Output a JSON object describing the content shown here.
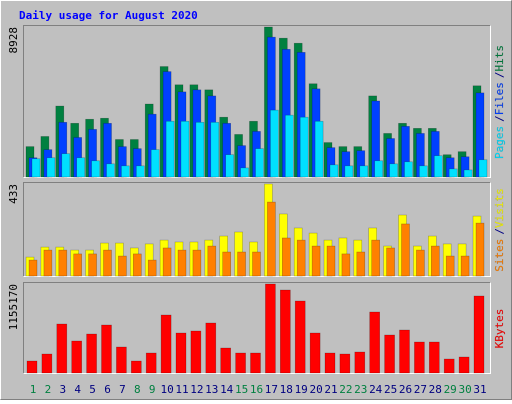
{
  "chart_data": [
    {
      "type": "bar",
      "title": "Daily usage for August 2020",
      "ylim": [
        0,
        8928
      ],
      "yticks": [
        8928
      ],
      "legend_separator": "/",
      "series": [
        {
          "name": "Hits",
          "color": "#008040",
          "values": [
            1810,
            2413,
            4223,
            3197,
            3438,
            3498,
            2232,
            2232,
            4343,
            6575,
            5489,
            5489,
            5188,
            3559,
            2534,
            3318,
            8928,
            8264,
            7963,
            5550,
            2051,
            1810,
            1810,
            4826,
            2594,
            3197,
            2896,
            2896,
            1327,
            1508,
            5429
          ]
        },
        {
          "name": "Files",
          "color": "#0040ff",
          "values": [
            1146,
            1629,
            3257,
            2353,
            2835,
            3197,
            1810,
            1689,
            3740,
            6274,
            5067,
            5188,
            4826,
            3197,
            1870,
            2715,
            8325,
            7601,
            7420,
            5248,
            1749,
            1508,
            1568,
            4524,
            2292,
            3016,
            2594,
            2715,
            1146,
            1206,
            5007
          ]
        },
        {
          "name": "Pages",
          "color": "#00e0ff",
          "values": [
            1086,
            1146,
            1387,
            1146,
            965,
            784,
            664,
            664,
            1629,
            3318,
            3318,
            3257,
            3257,
            1327,
            543,
            1689,
            3981,
            3680,
            3559,
            3318,
            724,
            664,
            664,
            965,
            784,
            905,
            664,
            1267,
            483,
            422,
            1026
          ]
        }
      ]
    },
    {
      "type": "bar",
      "ylim": [
        0,
        433
      ],
      "yticks": [
        433
      ],
      "legend_separator": "/",
      "series": [
        {
          "name": "Visits",
          "color": "#ffff00",
          "values": [
            89,
            136,
            136,
            122,
            122,
            155,
            155,
            132,
            151,
            169,
            160,
            160,
            169,
            188,
            207,
            160,
            433,
            292,
            226,
            202,
            169,
            179,
            169,
            226,
            141,
            287,
            141,
            188,
            151,
            151,
            282
          ]
        },
        {
          "name": "Sites",
          "color": "#ff8000",
          "values": [
            75,
            122,
            122,
            104,
            104,
            122,
            94,
            104,
            75,
            132,
            122,
            122,
            141,
            113,
            113,
            113,
            348,
            179,
            169,
            141,
            141,
            104,
            113,
            169,
            132,
            245,
            122,
            141,
            94,
            94,
            249
          ]
        }
      ]
    },
    {
      "type": "bar",
      "ylim": [
        0,
        1155170
      ],
      "yticks": [
        1155170
      ],
      "legend_separator": "/",
      "categories": [
        "1",
        "2",
        "3",
        "4",
        "5",
        "6",
        "7",
        "8",
        "9",
        "10",
        "11",
        "12",
        "13",
        "14",
        "15",
        "16",
        "17",
        "18",
        "19",
        "20",
        "21",
        "22",
        "23",
        "24",
        "25",
        "26",
        "27",
        "28",
        "29",
        "30",
        "31"
      ],
      "category_colors": [
        "#008040",
        "#008040",
        "#000080",
        "#000080",
        "#000080",
        "#000080",
        "#000080",
        "#008040",
        "#008040",
        "#000080",
        "#000080",
        "#000080",
        "#000080",
        "#000080",
        "#008040",
        "#008040",
        "#000080",
        "#000080",
        "#000080",
        "#000080",
        "#000080",
        "#008040",
        "#008040",
        "#000080",
        "#000080",
        "#000080",
        "#000080",
        "#000080",
        "#008040",
        "#008040",
        "#000080"
      ],
      "series": [
        {
          "name": "KBytes",
          "color": "#ff0000",
          "values": [
            155755,
            246606,
            635993,
            415342,
            506193,
            623014,
            337463,
            155755,
            259585,
            752807,
            519178,
            545137,
            648972,
            324484,
            259585,
            259585,
            1155170,
            1077293,
            934519,
            519178,
            259585,
            246606,
            272564,
            791741,
            493215,
            558110,
            402360,
            402360,
            181711,
            207670,
            999495
          ]
        }
      ]
    }
  ]
}
